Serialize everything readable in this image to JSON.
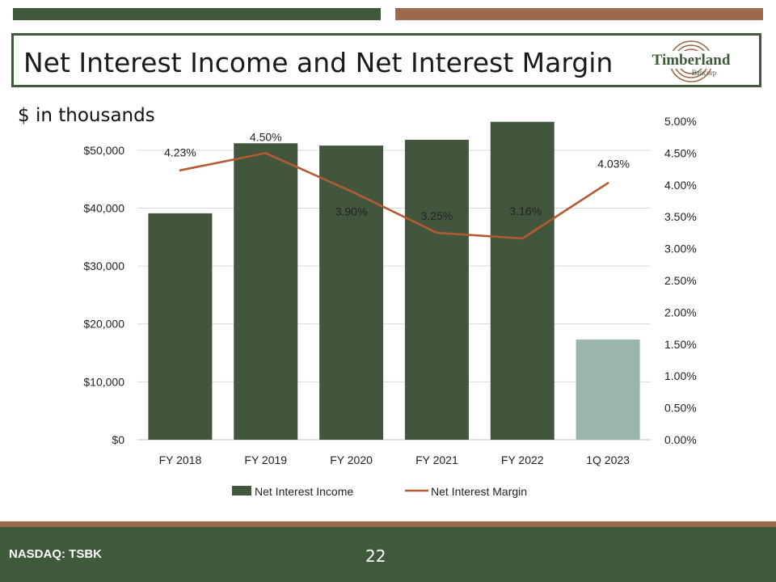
{
  "slide": {
    "title": "Net Interest Income and Net Interest Margin",
    "units_note": "$ in thousands",
    "logo_text_main": "Timberland",
    "logo_text_sub": "Bancorp",
    "footer_ticker": "NASDAQ: TSBK",
    "page_number": "22"
  },
  "colors": {
    "dark_green": "#3f5a3a",
    "brown": "#9b6a4c",
    "bar_green": "#41563c",
    "bar_light": "#9bb4ac",
    "line": "#b35a32"
  },
  "chart_data": {
    "type": "bar",
    "categories": [
      "FY 2018",
      "FY 2019",
      "FY 2020",
      "FY 2021",
      "FY 2022",
      "1Q 2023"
    ],
    "series": [
      {
        "name": "Net Interest Income",
        "type": "bar",
        "axis": "left",
        "values": [
          39100,
          51200,
          50800,
          51800,
          54900,
          17300
        ],
        "highlight_last": true
      },
      {
        "name": "Net Interest Margin",
        "type": "line",
        "axis": "right",
        "values": [
          4.23,
          4.5,
          3.9,
          3.25,
          3.16,
          4.03
        ],
        "labels": [
          "4.23%",
          "4.50%",
          "3.90%",
          "3.25%",
          "3.16%",
          "4.03%"
        ]
      }
    ],
    "left_axis": {
      "ylim": [
        0,
        55000
      ],
      "ticks": [
        0,
        10000,
        20000,
        30000,
        40000,
        50000
      ],
      "tick_labels": [
        "$0",
        "$10,000",
        "$20,000",
        "$30,000",
        "$40,000",
        "$50,000"
      ]
    },
    "right_axis": {
      "ylim": [
        0,
        5.0
      ],
      "ticks": [
        0,
        0.5,
        1.0,
        1.5,
        2.0,
        2.5,
        3.0,
        3.5,
        4.0,
        4.5,
        5.0
      ],
      "tick_labels": [
        "0.00%",
        "0.50%",
        "1.00%",
        "1.50%",
        "2.00%",
        "2.50%",
        "3.00%",
        "3.50%",
        "4.00%",
        "4.50%",
        "5.00%"
      ]
    },
    "grid": true,
    "legend": "bottom"
  }
}
